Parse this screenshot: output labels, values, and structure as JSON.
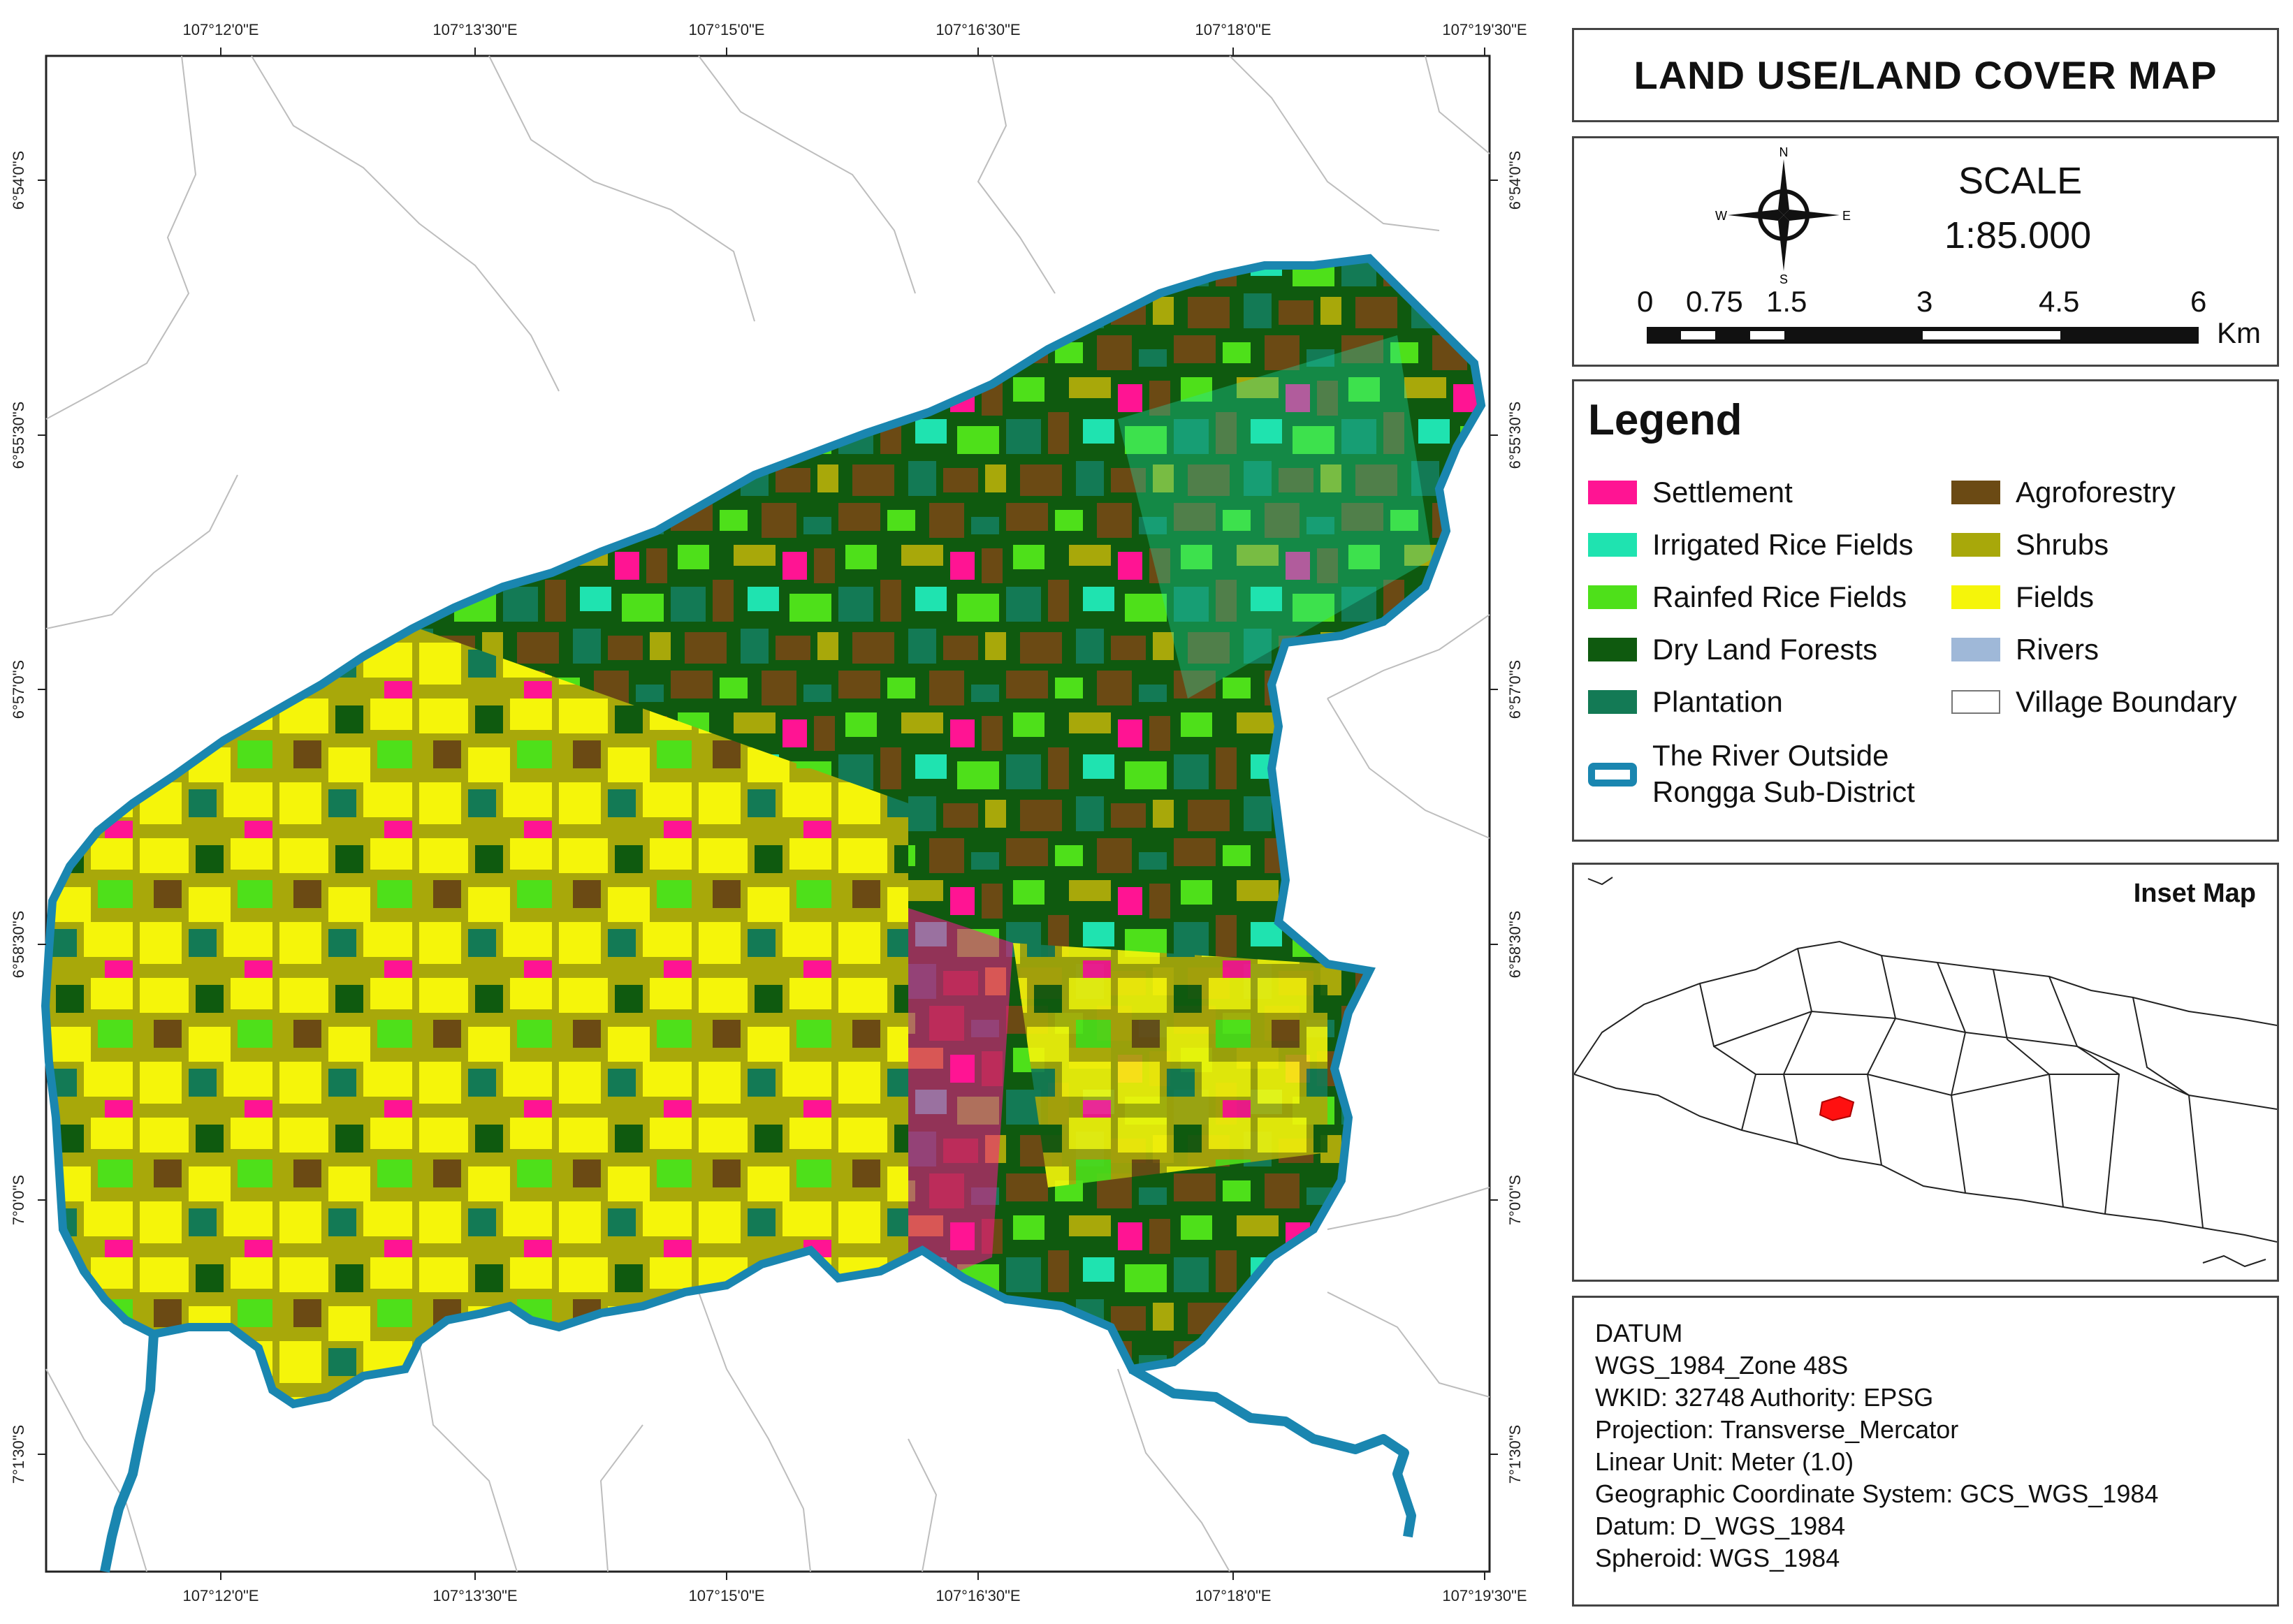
{
  "title": "LAND USE/LAND COVER MAP",
  "grid_labels": {
    "longitude": [
      "107°12'0\"E",
      "107°13'30\"E",
      "107°15'0\"E",
      "107°16'30\"E",
      "107°18'0\"E",
      "107°19'30\"E"
    ],
    "latitude": [
      "6°54'0\"S",
      "6°55'30\"S",
      "6°57'0\"S",
      "6°58'30\"S",
      "7°0'0\"S",
      "7°1'30\"S"
    ]
  },
  "scale": {
    "label": "SCALE",
    "ratio": "1:85.000",
    "ticks": [
      "0",
      "0.75",
      "1.5",
      "3",
      "4.5",
      "6"
    ],
    "unit": "Km"
  },
  "compass": {
    "n": "N",
    "s": "S",
    "e": "E",
    "w": "W"
  },
  "legend": {
    "title": "Legend",
    "items": [
      {
        "label": "Settlement",
        "color": "#ff1493"
      },
      {
        "label": "Irrigated Rice Fields",
        "color": "#1fe3b0"
      },
      {
        "label": "Rainfed Rice Fields",
        "color": "#4ee01a"
      },
      {
        "label": "Dry Land Forests",
        "color": "#0f5a0f"
      },
      {
        "label": "Plantation",
        "color": "#137a55"
      },
      {
        "label": "The River Outside Rongga Sub-District",
        "color": "#1a86b0"
      },
      {
        "label": "Agroforestry",
        "color": "#6b4a14"
      },
      {
        "label": "Shrubs",
        "color": "#a8a80a"
      },
      {
        "label": "Fields",
        "color": "#f5f50a"
      },
      {
        "label": "Rivers",
        "color": "#9fb8d8"
      },
      {
        "label": "Village Boundary",
        "color": "#ffffff"
      }
    ]
  },
  "inset": {
    "title": "Inset Map",
    "highlight_color": "#ff1010"
  },
  "datum": {
    "lines": [
      "DATUM",
      "WGS_1984_Zone 48S",
      "WKID: 32748 Authority: EPSG",
      "Projection: Transverse_Mercator",
      "Linear Unit: Meter (1.0)",
      "Geographic Coordinate System: GCS_WGS_1984",
      "Datum: D_WGS_1984",
      "Spheroid: WGS_1984"
    ]
  }
}
